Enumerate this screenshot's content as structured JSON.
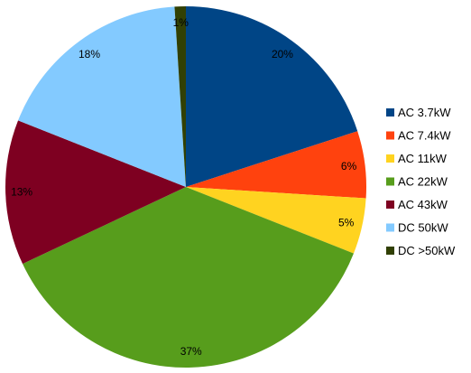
{
  "chart_data": {
    "type": "pie",
    "title": "",
    "legend_position": "right",
    "slices": [
      {
        "label": "AC 3.7kW",
        "value": 20,
        "value_label": "20%",
        "color": "#004586"
      },
      {
        "label": "AC 7.4kW",
        "value": 6,
        "value_label": "6%",
        "color": "#ff420e"
      },
      {
        "label": "AC 11kW",
        "value": 5,
        "value_label": "5%",
        "color": "#ffd320"
      },
      {
        "label": "AC 22kW",
        "value": 37,
        "value_label": "37%",
        "color": "#579d1c"
      },
      {
        "label": "AC 43kW",
        "value": 13,
        "value_label": "13%",
        "color": "#7e0021"
      },
      {
        "label": "DC 50kW",
        "value": 18,
        "value_label": "18%",
        "color": "#83caff"
      },
      {
        "label": "DC >50kW",
        "value": 1,
        "value_label": "1%",
        "color": "#314004"
      }
    ]
  }
}
